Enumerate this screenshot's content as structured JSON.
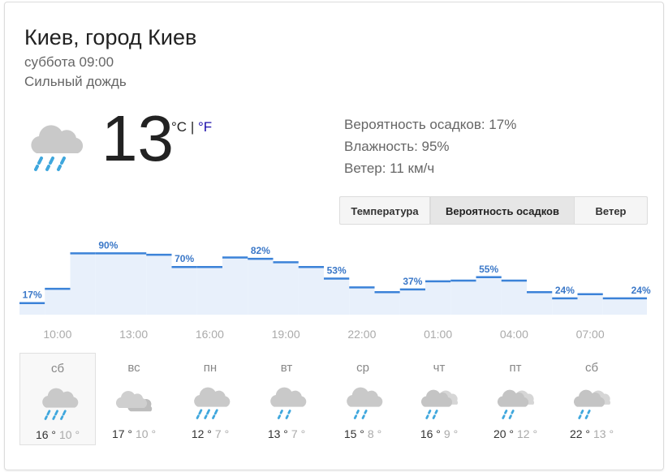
{
  "header": {
    "location": "Киев, город Киев",
    "time": "суббота 09:00",
    "condition": "Сильный дождь"
  },
  "current": {
    "temperature": "13",
    "unit_c": "°C",
    "separator": "|",
    "unit_f": "°F"
  },
  "details": [
    "Вероятность осадков: 17%",
    "Влажность: 95%",
    "Ветер: 11 км/ч"
  ],
  "tabs": [
    "Температура",
    "Вероятность осадков",
    "Ветер"
  ],
  "precipitation": {
    "values": [
      17,
      38,
      90,
      90,
      90,
      88,
      70,
      70,
      84,
      82,
      77,
      70,
      53,
      40,
      33,
      37,
      49,
      50,
      55,
      50,
      33,
      24,
      30,
      24,
      24
    ],
    "value_labels": [
      "17%",
      null,
      null,
      "90%",
      null,
      null,
      "70%",
      null,
      null,
      "82%",
      null,
      null,
      "53%",
      null,
      null,
      "37%",
      null,
      null,
      "55%",
      null,
      null,
      "24%",
      null,
      null,
      "24%"
    ],
    "ylim": [
      0,
      100
    ],
    "hours": [
      "10:00",
      "13:00",
      "16:00",
      "19:00",
      "22:00",
      "01:00",
      "04:00",
      "07:00"
    ]
  },
  "days": [
    {
      "name": "сб",
      "high": "16 °",
      "low": "10 °"
    },
    {
      "name": "вс",
      "high": "17 °",
      "low": "10 °"
    },
    {
      "name": "пн",
      "high": "12 °",
      "low": "7 °"
    },
    {
      "name": "вт",
      "high": "13 °",
      "low": "7 °"
    },
    {
      "name": "ср",
      "high": "15 °",
      "low": "8 °"
    },
    {
      "name": "чт",
      "high": "16 °",
      "low": "9 °"
    },
    {
      "name": "пт",
      "high": "20 °",
      "low": "12 °"
    },
    {
      "name": "сб",
      "high": "22 °",
      "low": "13 °"
    }
  ]
}
